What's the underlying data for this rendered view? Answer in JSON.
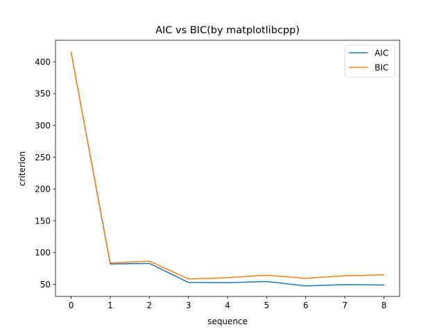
{
  "chart_data": {
    "type": "line",
    "title": "AIC vs BIC(by matplotlibcpp)",
    "xlabel": "sequence",
    "ylabel": "criterion",
    "x": [
      0,
      1,
      2,
      3,
      4,
      5,
      6,
      7,
      8
    ],
    "xticks": [
      "0",
      "1",
      "2",
      "3",
      "4",
      "5",
      "6",
      "7",
      "8"
    ],
    "yticks": [
      "50",
      "100",
      "150",
      "200",
      "250",
      "300",
      "350",
      "400"
    ],
    "ytick_values": [
      50,
      100,
      150,
      200,
      250,
      300,
      350,
      400
    ],
    "xlim": [
      -0.4,
      8.4
    ],
    "ylim": [
      31,
      434
    ],
    "grid": false,
    "legend_position": "top-right",
    "series": [
      {
        "name": "AIC",
        "color": "#1f77b4",
        "values": [
          415,
          82,
          83,
          53,
          52.5,
          54.5,
          47.5,
          49.5,
          49
        ]
      },
      {
        "name": "BIC",
        "color": "#ff7f0e",
        "values": [
          415,
          83.5,
          86.5,
          58.5,
          60.5,
          64.5,
          59.5,
          63.5,
          65
        ]
      }
    ]
  }
}
